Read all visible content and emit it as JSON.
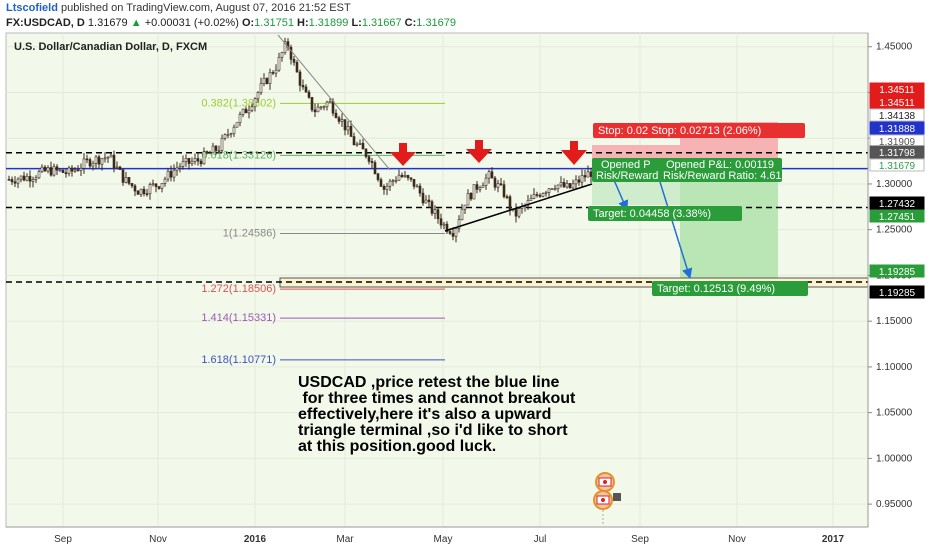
{
  "header": {
    "author": "Ltscofield",
    "published": "published on TradingView.com, August 07, 2016 21:52 EST",
    "symbol": "FX:USDCAD, D",
    "last": "1.31679",
    "change": "+0.00031 (+0.02%)",
    "ohlc": {
      "O": "1.31751",
      "H": "1.31899",
      "L": "1.31667",
      "C": "1.31679"
    }
  },
  "chart_title": "U.S. Dollar/Canadian Dollar, D, FXCM",
  "chart_data": {
    "type": "candlestick",
    "x_ticks": [
      "Sep",
      "Nov",
      "2016",
      "Mar",
      "May",
      "Jul",
      "Sep",
      "Nov",
      "2017"
    ],
    "y_ticks": [
      "1.45000",
      "1.40000",
      "1.35000",
      "1.30000",
      "1.25000",
      "1.20000",
      "1.15000",
      "1.10000",
      "1.05000",
      "1.00000",
      "0.95000"
    ],
    "ylim": [
      0.925,
      1.465
    ],
    "price_path": [
      [
        0,
        1.305
      ],
      [
        20,
        1.308
      ],
      [
        40,
        1.315
      ],
      [
        60,
        1.312
      ],
      [
        80,
        1.325
      ],
      [
        100,
        1.33
      ],
      [
        115,
        1.305
      ],
      [
        130,
        1.292
      ],
      [
        150,
        1.3
      ],
      [
        170,
        1.32
      ],
      [
        190,
        1.326
      ],
      [
        210,
        1.34
      ],
      [
        225,
        1.365
      ],
      [
        240,
        1.385
      ],
      [
        255,
        1.41
      ],
      [
        268,
        1.43
      ],
      [
        278,
        1.455
      ],
      [
        285,
        1.43
      ],
      [
        295,
        1.4
      ],
      [
        305,
        1.38
      ],
      [
        320,
        1.39
      ],
      [
        335,
        1.365
      ],
      [
        345,
        1.345
      ],
      [
        360,
        1.33
      ],
      [
        375,
        1.295
      ],
      [
        390,
        1.31
      ],
      [
        405,
        1.3
      ],
      [
        420,
        1.275
      ],
      [
        435,
        1.255
      ],
      [
        445,
        1.248
      ],
      [
        455,
        1.28
      ],
      [
        470,
        1.3
      ],
      [
        480,
        1.308
      ],
      [
        495,
        1.29
      ],
      [
        505,
        1.265
      ],
      [
        515,
        1.275
      ],
      [
        530,
        1.29
      ],
      [
        545,
        1.3
      ],
      [
        560,
        1.295
      ],
      [
        575,
        1.308
      ],
      [
        585,
        1.315
      ],
      [
        592,
        1.317
      ]
    ],
    "fibonacci": [
      {
        "label": "0.382(1.38802)",
        "value": 1.38802,
        "color": "#9acd32"
      },
      {
        "label": "0.618(1.33126)",
        "value": 1.33126,
        "color": "#5bb35b"
      },
      {
        "label": "1(1.24586)",
        "value": 1.24586,
        "color": "#888888"
      },
      {
        "label": "1.272(1.18506)",
        "value": 1.18506,
        "color": "#d9534f"
      },
      {
        "label": "1.414(1.15331)",
        "value": 1.15331,
        "color": "#9b59b6"
      },
      {
        "label": "1.618(1.10771)",
        "value": 1.10771,
        "color": "#3b52c4"
      }
    ],
    "levels": [
      {
        "value": 1.3341,
        "style": "dashed",
        "color": "#000000"
      },
      {
        "value": 1.3168,
        "style": "solid",
        "color": "#2233cc"
      },
      {
        "value": 1.2743,
        "style": "dashed",
        "color": "#000000"
      },
      {
        "value": 1.19285,
        "style": "dashed",
        "color": "#000000"
      }
    ],
    "price_labels": [
      {
        "text": "1.34511",
        "color": "#e02020"
      },
      {
        "text": "1.34511",
        "color": "#e02020"
      },
      {
        "text": "1.34138",
        "color": "#222222"
      },
      {
        "text": "1.31888",
        "color": "#2233cc"
      },
      {
        "text": "1.31909",
        "color": "#555555"
      },
      {
        "text": "1.31798",
        "color": "#ffffff"
      },
      {
        "text": "1.31679",
        "color": "#2e9e4a"
      },
      {
        "text": "1.27432",
        "color": "#222222"
      },
      {
        "text": "1.27451",
        "color": "#2e9e4a"
      },
      {
        "text": "1.19285",
        "color": "#2e9e4a"
      },
      {
        "text": "1.19285",
        "color": "#222222"
      }
    ],
    "positions": {
      "stop_label": "Stop: 0.02 Stop: 0.02713 (2.06%)",
      "opened_short1": "Opened P",
      "opened_short2": "Risk/Reward",
      "opened_pl": "Opened P&L: 0.00119",
      "risk_reward": "Risk/Reward Ratio: 4.61",
      "target1": "Target: 0.04458 (3.38%)",
      "target2": "Target: 0.12513 (9.49%)"
    },
    "annotation": [
      "USDCAD ,price retest the blue line",
      " for three times and cannot breakout",
      "effectively,here it's also a upward",
      "triangle terminal ,so i'd like to short",
      "at this position.good luck."
    ]
  }
}
